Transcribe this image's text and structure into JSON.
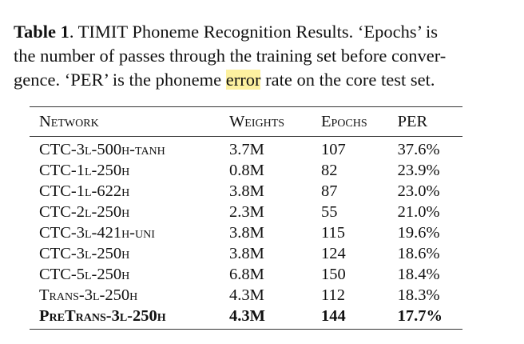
{
  "caption": {
    "label": "Table 1",
    "line1_rest": ". TIMIT Phoneme Recognition Results. ‘Epochs’ is",
    "line2": "the number of passes through the training set before conver-",
    "line3_pre": "gence. ‘PER’ is the phoneme ",
    "line3_highlight": "error",
    "line3_post": " rate on the core test set."
  },
  "table": {
    "headers": [
      "Network",
      "Weights",
      "Epochs",
      "PER"
    ],
    "rows": [
      [
        "CTC-3l-500h-tanh",
        "3.7M",
        "107",
        "37.6%"
      ],
      [
        "CTC-1l-250h",
        "0.8M",
        "82",
        "23.9%"
      ],
      [
        "CTC-1l-622h",
        "3.8M",
        "87",
        "23.0%"
      ],
      [
        "CTC-2l-250h",
        "2.3M",
        "55",
        "21.0%"
      ],
      [
        "CTC-3l-421h-uni",
        "3.8M",
        "115",
        "19.6%"
      ],
      [
        "CTC-3l-250h",
        "3.8M",
        "124",
        "18.6%"
      ],
      [
        "CTC-5l-250h",
        "6.8M",
        "150",
        "18.4%"
      ],
      [
        "Trans-3l-250h",
        "4.3M",
        "112",
        "18.3%"
      ],
      [
        "PreTrans-3l-250h",
        "4.3M",
        "144",
        "17.7%"
      ]
    ],
    "bold_row_index": 8,
    "highlight_color": "#fdf1a0"
  }
}
